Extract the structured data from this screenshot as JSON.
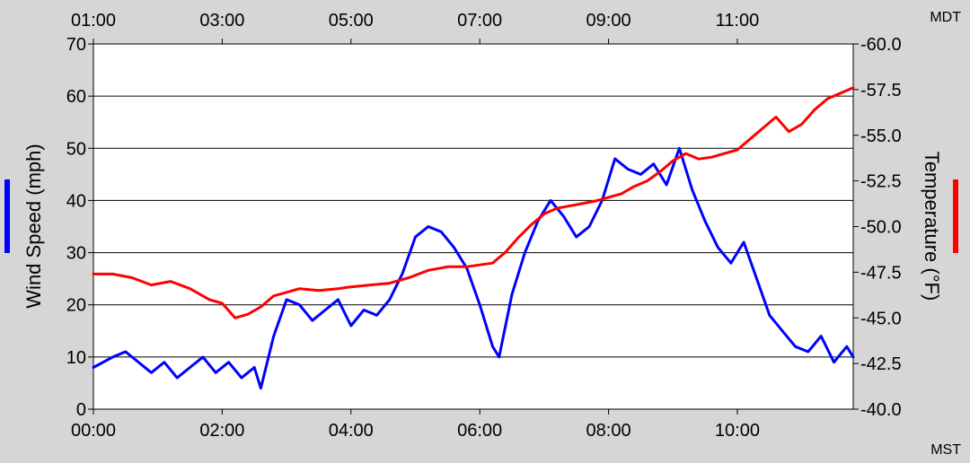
{
  "chart_data": {
    "type": "line",
    "x_unit": "hours",
    "top_axis": {
      "label": "MDT",
      "ticks": [
        "01:00",
        "03:00",
        "05:00",
        "07:00",
        "09:00",
        "11:00"
      ]
    },
    "bottom_axis": {
      "label": "MST",
      "ticks": [
        "00:00",
        "02:00",
        "04:00",
        "06:00",
        "08:00",
        "10:00"
      ]
    },
    "xlim": [
      0,
      11.8
    ],
    "left_axis": {
      "label": "Wind Speed (mph)",
      "ticks": [
        "0",
        "10",
        "20",
        "30",
        "40",
        "50",
        "60",
        "70"
      ],
      "ylim": [
        0,
        70
      ],
      "color": "#0000ff"
    },
    "right_axis": {
      "label": "Temperature (°F)",
      "ticks": [
        "-40.0",
        "-42.5",
        "-45.0",
        "-47.5",
        "-50.0",
        "-52.5",
        "-55.0",
        "-57.5",
        "-60.0"
      ],
      "ylim": [
        -40,
        -60
      ],
      "color": "#ff0000"
    },
    "grid": true,
    "series": [
      {
        "name": "Wind Speed (mph)",
        "axis": "left",
        "color": "#0000ff",
        "x": [
          0,
          0.3,
          0.5,
          0.7,
          0.9,
          1.1,
          1.3,
          1.5,
          1.7,
          1.9,
          2.1,
          2.3,
          2.5,
          2.6,
          2.8,
          3.0,
          3.2,
          3.4,
          3.6,
          3.8,
          4.0,
          4.2,
          4.4,
          4.6,
          4.8,
          5.0,
          5.2,
          5.4,
          5.6,
          5.8,
          6.0,
          6.2,
          6.3,
          6.5,
          6.7,
          6.9,
          7.1,
          7.3,
          7.5,
          7.7,
          7.9,
          8.1,
          8.3,
          8.5,
          8.7,
          8.9,
          9.1,
          9.3,
          9.5,
          9.7,
          9.9,
          10.1,
          10.3,
          10.5,
          10.7,
          10.9,
          11.1,
          11.3,
          11.5,
          11.7,
          11.8
        ],
        "values": [
          8,
          10,
          11,
          9,
          7,
          9,
          6,
          8,
          10,
          7,
          9,
          6,
          8,
          4,
          14,
          21,
          20,
          17,
          19,
          21,
          16,
          19,
          18,
          21,
          26,
          33,
          35,
          34,
          31,
          27,
          20,
          12,
          10,
          22,
          30,
          36,
          40,
          37,
          33,
          35,
          40,
          48,
          46,
          45,
          47,
          43,
          50,
          42,
          36,
          31,
          28,
          32,
          25,
          18,
          15,
          12,
          11,
          14,
          9,
          12,
          10
        ]
      },
      {
        "name": "Temperature (°F)",
        "axis": "right",
        "color": "#ff0000",
        "x": [
          0,
          0.3,
          0.6,
          0.9,
          1.2,
          1.5,
          1.8,
          2.0,
          2.2,
          2.4,
          2.6,
          2.8,
          3.0,
          3.2,
          3.5,
          3.8,
          4.0,
          4.3,
          4.6,
          4.9,
          5.2,
          5.5,
          5.8,
          6.0,
          6.2,
          6.4,
          6.6,
          6.8,
          7.0,
          7.2,
          7.5,
          7.8,
          8.0,
          8.2,
          8.4,
          8.6,
          8.8,
          9.0,
          9.2,
          9.4,
          9.6,
          9.8,
          10.0,
          10.2,
          10.4,
          10.6,
          10.8,
          11.0,
          11.2,
          11.4,
          11.6,
          11.8
        ],
        "values": [
          -47.4,
          -47.4,
          -47.2,
          -46.8,
          -47.0,
          -46.6,
          -46.0,
          -45.8,
          -45.0,
          -45.2,
          -45.6,
          -46.2,
          -46.4,
          -46.6,
          -46.5,
          -46.6,
          -46.7,
          -46.8,
          -46.9,
          -47.2,
          -47.6,
          -47.8,
          -47.8,
          -47.9,
          -48.0,
          -48.6,
          -49.4,
          -50.1,
          -50.7,
          -51.0,
          -51.2,
          -51.4,
          -51.6,
          -51.8,
          -52.2,
          -52.5,
          -53.0,
          -53.6,
          -54.0,
          -53.7,
          -53.8,
          -54.0,
          -54.2,
          -54.8,
          -55.4,
          -56.0,
          -55.2,
          -55.6,
          -56.4,
          -57.0,
          -57.3,
          -57.6
        ]
      }
    ]
  }
}
